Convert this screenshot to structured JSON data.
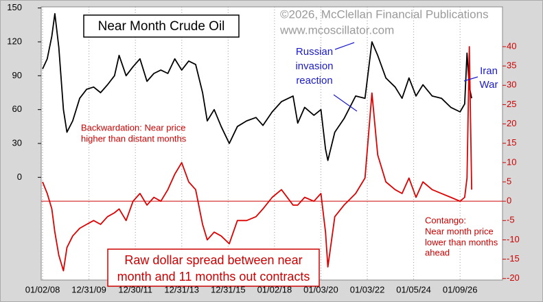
{
  "chart_data": {
    "type": "line",
    "title": "Near Month Crude Oil",
    "credit": "©2026, McClellan Financial Publications",
    "website": "www.mcoscillator.com",
    "annotations": {
      "russia": [
        "Russian",
        "invasion",
        "reaction"
      ],
      "iran": [
        "Iran",
        "War"
      ],
      "backwardation": [
        "Backwardation: Near price",
        "higher than distant months"
      ],
      "contango": [
        "Contango:",
        "Near month price",
        "lower than months",
        "ahead"
      ],
      "spread_note": [
        "Raw dollar spread between near",
        "month and 11 months out contracts"
      ]
    },
    "x": [
      2008.0,
      2008.2,
      2008.4,
      2008.53,
      2008.7,
      2008.9,
      2009.05,
      2009.3,
      2009.6,
      2009.9,
      2010.2,
      2010.5,
      2010.8,
      2011.1,
      2011.3,
      2011.6,
      2011.9,
      2012.2,
      2012.5,
      2012.8,
      2013.1,
      2013.4,
      2013.7,
      2014.0,
      2014.3,
      2014.6,
      2014.9,
      2015.1,
      2015.4,
      2015.7,
      2016.05,
      2016.4,
      2016.8,
      2017.2,
      2017.5,
      2017.9,
      2018.3,
      2018.8,
      2019.0,
      2019.3,
      2019.7,
      2020.0,
      2020.2,
      2020.3,
      2020.6,
      2021.0,
      2021.5,
      2021.9,
      2022.2,
      2022.45,
      2022.8,
      2023.2,
      2023.5,
      2023.8,
      2024.1,
      2024.4,
      2024.8,
      2025.2,
      2025.6,
      2026.0,
      2026.2,
      2026.3,
      2026.4,
      2026.5
    ],
    "series": [
      {
        "color": "#000000",
        "values": [
          96,
          105,
          125,
          145,
          115,
          60,
          40,
          50,
          70,
          78,
          80,
          75,
          82,
          90,
          108,
          90,
          98,
          105,
          85,
          92,
          95,
          92,
          105,
          95,
          103,
          100,
          75,
          50,
          60,
          45,
          30,
          45,
          50,
          53,
          46,
          58,
          67,
          72,
          48,
          62,
          55,
          60,
          25,
          15,
          40,
          52,
          72,
          70,
          120,
          108,
          88,
          80,
          70,
          88,
          72,
          82,
          72,
          70,
          62,
          58,
          65,
          110,
          80,
          70
        ]
      },
      {
        "color": "#dd0000",
        "axis": "y2",
        "values": [
          5,
          2,
          -2,
          -8,
          -14,
          -18,
          -12,
          -9,
          -7,
          -6,
          -5,
          -6,
          -4,
          -3,
          -2,
          -5,
          0,
          2,
          -1,
          1,
          0,
          3,
          7,
          10,
          5,
          3,
          -6,
          -10,
          -8,
          -9,
          -11,
          -5,
          -5,
          -4,
          -2,
          1,
          3,
          -1,
          -1,
          1,
          0,
          2,
          -8,
          -17,
          -4,
          -1,
          2,
          6,
          28,
          12,
          5,
          3,
          2,
          6,
          1,
          5,
          3,
          2,
          1,
          0,
          1,
          6,
          40,
          3
        ]
      }
    ],
    "xlim": [
      2007.94,
      2027.83
    ],
    "xticks": [
      {
        "value": 2008.0,
        "label": "01/02/08"
      },
      {
        "value": 2010.0,
        "label": "12/31/09"
      },
      {
        "value": 2012.0,
        "label": "12/30/11"
      },
      {
        "value": 2014.0,
        "label": "12/31/13"
      },
      {
        "value": 2016.0,
        "label": "12/31/15"
      },
      {
        "value": 2018.0,
        "label": "01/02/18"
      },
      {
        "value": 2020.0,
        "label": "01/03/20"
      },
      {
        "value": 2022.0,
        "label": "01/03/22"
      },
      {
        "value": 2024.0,
        "label": "01/05/24"
      },
      {
        "value": 2026.0,
        "label": "01/09/26"
      }
    ],
    "ylim": [
      -91,
      151
    ],
    "yticks": [
      0,
      30,
      60,
      90,
      120,
      150
    ],
    "y2lim": [
      -20.4,
      50.3
    ],
    "y2ticks": [
      -20,
      -15,
      -10,
      -5,
      0,
      5,
      10,
      15,
      20,
      25,
      30,
      35,
      40
    ]
  }
}
